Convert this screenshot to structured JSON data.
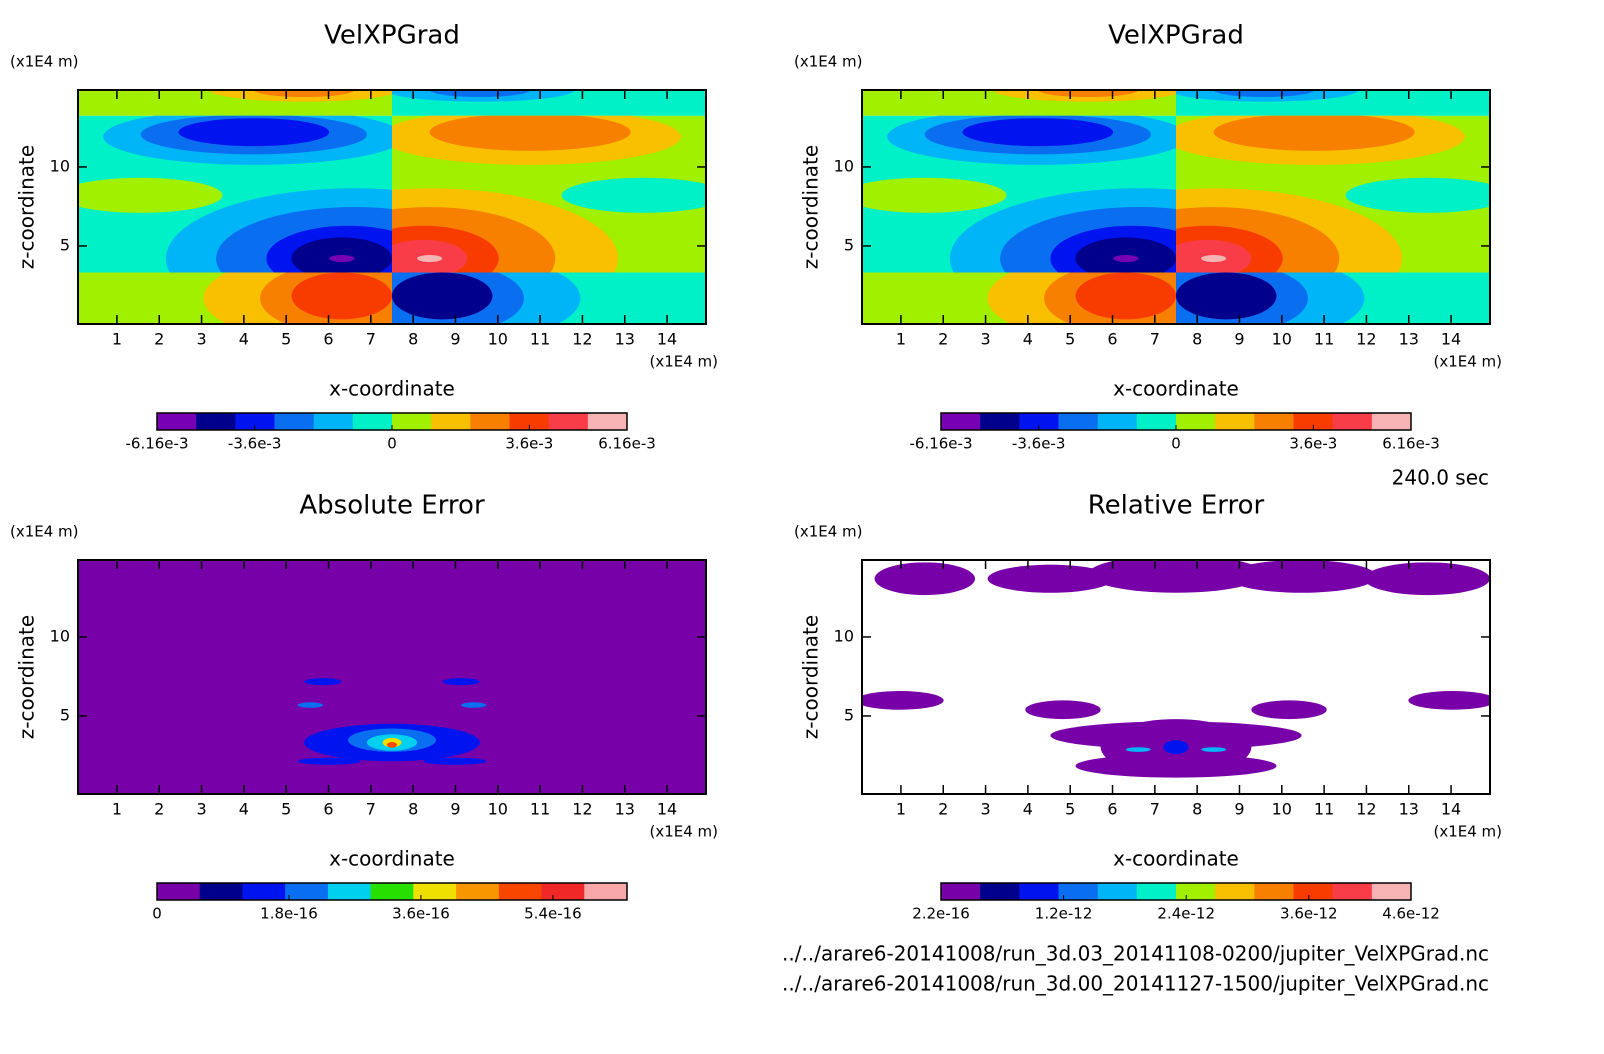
{
  "chart_data": [
    {
      "type": "contour",
      "title": "VelXPGrad",
      "x_label": "x-coordinate",
      "y_label": "z-coordinate",
      "x_unit": "(x1E4 m)",
      "y_unit": "(x1E4 m)",
      "xlim": [
        0.08,
        14.92
      ],
      "ylim": [
        0.06,
        14.87
      ],
      "xticks": [
        1,
        2,
        3,
        4,
        5,
        6,
        7,
        8,
        9,
        10,
        11,
        12,
        13,
        14
      ],
      "yticks": [
        5,
        10
      ],
      "colorbar": {
        "clim": [
          -0.00616,
          0.00616
        ],
        "colors": [
          "#7800b4",
          "#00008c",
          "#0014f0",
          "#0a6ef0",
          "#00b4f8",
          "#00f0c8",
          "#a0f000",
          "#f8c000",
          "#f88000",
          "#f83c00",
          "#f83c48",
          "#f8b4b4"
        ],
        "ticks": [
          {
            "value": -0.00616,
            "label": "-6.16e-3"
          },
          {
            "value": -0.0036,
            "label": "-3.6e-3"
          },
          0,
          {
            "value": 0.0036,
            "label": "3.6e-3"
          },
          {
            "value": 0.00616,
            "label": "6.16e-3"
          }
        ]
      }
    },
    {
      "type": "contour",
      "title": "VelXPGrad",
      "x_label": "x-coordinate",
      "y_label": "z-coordinate",
      "x_unit": "(x1E4 m)",
      "y_unit": "(x1E4 m)",
      "xlim": [
        0.08,
        14.92
      ],
      "ylim": [
        0.06,
        14.87
      ],
      "xticks": [
        1,
        2,
        3,
        4,
        5,
        6,
        7,
        8,
        9,
        10,
        11,
        12,
        13,
        14
      ],
      "yticks": [
        5,
        10
      ],
      "colorbar": {
        "clim": [
          -0.00616,
          0.00616
        ],
        "colors": [
          "#7800b4",
          "#00008c",
          "#0014f0",
          "#0a6ef0",
          "#00b4f8",
          "#00f0c8",
          "#a0f000",
          "#f8c000",
          "#f88000",
          "#f83c00",
          "#f83c48",
          "#f8b4b4"
        ],
        "ticks": [
          {
            "value": -0.00616,
            "label": "-6.16e-3"
          },
          {
            "value": -0.0036,
            "label": "-3.6e-3"
          },
          0,
          {
            "value": 0.0036,
            "label": "3.6e-3"
          },
          {
            "value": 0.00616,
            "label": "6.16e-3"
          }
        ]
      }
    },
    {
      "type": "contour",
      "title": "Absolute Error",
      "x_label": "x-coordinate",
      "y_label": "z-coordinate",
      "x_unit": "(x1E4 m)",
      "y_unit": "(x1E4 m)",
      "xlim": [
        0.08,
        14.92
      ],
      "ylim": [
        0.06,
        14.87
      ],
      "xticks": [
        1,
        2,
        3,
        4,
        5,
        6,
        7,
        8,
        9,
        10,
        11,
        12,
        13,
        14
      ],
      "yticks": [
        5,
        10
      ],
      "colorbar": {
        "clim": [
          0,
          6.41e-16
        ],
        "colors": [
          "#7800a8",
          "#00008c",
          "#0014f0",
          "#0a6ef0",
          "#00d0f0",
          "#28e000",
          "#f0e000",
          "#f89600",
          "#f84600",
          "#f02828",
          "#f8a8a8"
        ],
        "ticks": [
          0,
          {
            "value": 1.8e-16,
            "label": "1.8e-16"
          },
          {
            "value": 3.6e-16,
            "label": "3.6e-16"
          },
          {
            "value": 5.4e-16,
            "label": "5.4e-16"
          }
        ]
      }
    },
    {
      "type": "contour",
      "title": "Relative Error",
      "x_label": "x-coordinate",
      "y_label": "z-coordinate",
      "x_unit": "(x1E4 m)",
      "y_unit": "(x1E4 m)",
      "xlim": [
        0.08,
        14.92
      ],
      "ylim": [
        0.06,
        14.87
      ],
      "xticks": [
        1,
        2,
        3,
        4,
        5,
        6,
        7,
        8,
        9,
        10,
        11,
        12,
        13,
        14
      ],
      "yticks": [
        5,
        10
      ],
      "colorbar": {
        "clim": [
          2.2e-16,
          4.6e-12
        ],
        "colors": [
          "#7800a8",
          "#00008c",
          "#0014f0",
          "#0a6ef0",
          "#00b4f8",
          "#00f0c8",
          "#a0f000",
          "#f8c000",
          "#f88000",
          "#f83c00",
          "#f83c48",
          "#f8b4b4"
        ],
        "ticks": [
          {
            "value": 2.2e-16,
            "label": "2.2e-16"
          },
          {
            "value": 1.2e-12,
            "label": "1.2e-12"
          },
          {
            "value": 2.4e-12,
            "label": "2.4e-12"
          },
          {
            "value": 3.6e-12,
            "label": "3.6e-12"
          },
          {
            "value": 4.6e-12,
            "label": "4.6e-12"
          }
        ]
      }
    }
  ],
  "footer": {
    "time": "240.0 sec",
    "files": [
      "../../arare6-20141008/run_3d.03_20141108-0200/jupiter_VelXPGrad.nc",
      "../../arare6-20141008/run_3d.00_20141127-1500/jupiter_VelXPGrad.nc"
    ]
  }
}
